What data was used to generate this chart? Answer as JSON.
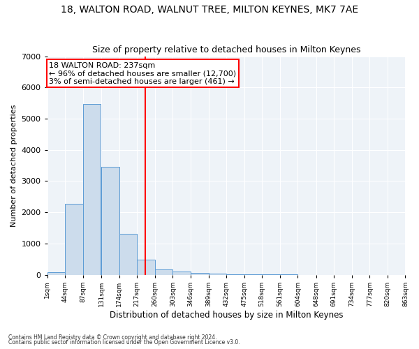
{
  "title": "18, WALTON ROAD, WALNUT TREE, MILTON KEYNES, MK7 7AE",
  "subtitle": "Size of property relative to detached houses in Milton Keynes",
  "xlabel": "Distribution of detached houses by size in Milton Keynes",
  "ylabel": "Number of detached properties",
  "footnote1": "Contains HM Land Registry data © Crown copyright and database right 2024.",
  "footnote2": "Contains public sector information licensed under the Open Government Licence v3.0.",
  "bin_edges": [
    1,
    44,
    87,
    131,
    174,
    217,
    260,
    303,
    346,
    389,
    432,
    475,
    518,
    561,
    604,
    648,
    691,
    734,
    777,
    820,
    863
  ],
  "bar_heights": [
    80,
    2280,
    5480,
    3450,
    1310,
    480,
    160,
    95,
    55,
    30,
    10,
    5,
    2,
    1,
    0,
    0,
    0,
    0,
    0,
    0
  ],
  "bar_color": "#ccdcec",
  "bar_edgecolor": "#5b9bd5",
  "marker_x": 237,
  "marker_color": "red",
  "annotation_text": "18 WALTON ROAD: 237sqm\n← 96% of detached houses are smaller (12,700)\n3% of semi-detached houses are larger (461) →",
  "annotation_box_color": "white",
  "annotation_box_edgecolor": "red",
  "ylim": [
    0,
    7000
  ],
  "xlim": [
    1,
    863
  ],
  "tick_labels": [
    "1sqm",
    "44sqm",
    "87sqm",
    "131sqm",
    "174sqm",
    "217sqm",
    "260sqm",
    "303sqm",
    "346sqm",
    "389sqm",
    "432sqm",
    "475sqm",
    "518sqm",
    "561sqm",
    "604sqm",
    "648sqm",
    "691sqm",
    "734sqm",
    "777sqm",
    "820sqm",
    "863sqm"
  ],
  "tick_positions": [
    1,
    44,
    87,
    131,
    174,
    217,
    260,
    303,
    346,
    389,
    432,
    475,
    518,
    561,
    604,
    648,
    691,
    734,
    777,
    820,
    863
  ],
  "background_color": "#eef3f8",
  "grid_color": "#ffffff",
  "title_fontsize": 10,
  "subtitle_fontsize": 9,
  "annotation_fontsize": 8,
  "ylabel_fontsize": 8,
  "xlabel_fontsize": 8.5,
  "tick_fontsize": 6.5,
  "footnote_fontsize": 5.5
}
